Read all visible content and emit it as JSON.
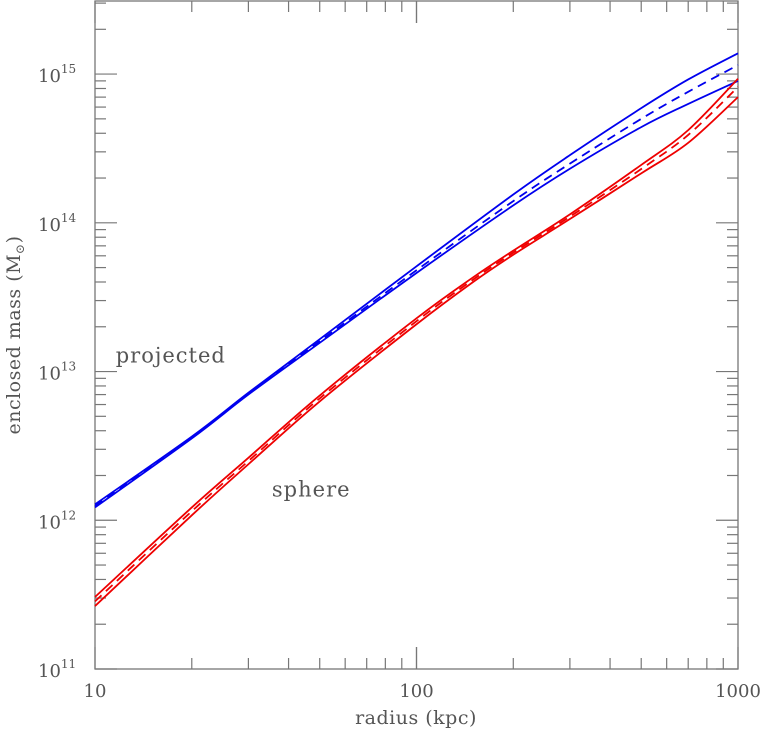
{
  "chart_data": {
    "type": "line",
    "title": "",
    "xlabel": "radius (kpc)",
    "ylabel": "enclosed mass (M",
    "ylabel_symbol": "⊙",
    "ylabel_close": ")",
    "x_scale": "log",
    "y_scale": "log",
    "xlim": [
      10,
      1000
    ],
    "ylim": [
      100000000000.0,
      3100000000000000.0
    ],
    "x_ticks": [
      {
        "value": 10,
        "label": "10"
      },
      {
        "value": 100,
        "label": "100"
      },
      {
        "value": 1000,
        "label": "1000"
      }
    ],
    "y_ticks": [
      {
        "value": 100000000000.0,
        "base": "10",
        "exp": "11"
      },
      {
        "value": 1000000000000.0,
        "base": "10",
        "exp": "12"
      },
      {
        "value": 10000000000000.0,
        "base": "10",
        "exp": "13"
      },
      {
        "value": 100000000000000.0,
        "base": "10",
        "exp": "14"
      },
      {
        "value": 1000000000000000.0,
        "base": "10",
        "exp": "15"
      }
    ],
    "grid": false,
    "annotations": [
      {
        "text": "projected",
        "x": 11.6,
        "y": 11500000000000.0
      },
      {
        "text": "sphere",
        "x": 35.5,
        "y": 1450000000000.0
      }
    ],
    "series": [
      {
        "group": "projected",
        "style": "solid",
        "color": "#0000ee",
        "x": [
          10,
          20,
          30,
          50,
          100,
          200,
          300,
          500,
          700,
          1000
        ],
        "y": [
          1220000000000.0,
          3550000000000.0,
          7000000000000.0,
          15600000000000.0,
          46000000000000.0,
          131000000000000.0,
          231000000000000.0,
          440000000000000.0,
          630000000000000.0,
          900000000000000.0
        ]
      },
      {
        "group": "projected",
        "style": "dashed",
        "color": "#0000ee",
        "x": [
          10,
          20,
          30,
          50,
          100,
          200,
          300,
          500,
          700,
          1000
        ],
        "y": [
          1250000000000.0,
          3600000000000.0,
          7100000000000.0,
          16000000000000.0,
          48000000000000.0,
          140000000000000.0,
          250000000000000.0,
          500000000000000.0,
          760000000000000.0,
          1150000000000000.0
        ]
      },
      {
        "group": "projected",
        "style": "solid",
        "color": "#0000ee",
        "x": [
          10,
          20,
          30,
          50,
          100,
          200,
          300,
          500,
          700,
          1000
        ],
        "y": [
          1280000000000.0,
          3650000000000.0,
          7200000000000.0,
          16500000000000.0,
          51000000000000.0,
          155000000000000.0,
          285000000000000.0,
          590000000000000.0,
          920000000000000.0,
          1380000000000000.0
        ]
      },
      {
        "group": "sphere",
        "style": "solid",
        "color": "#ee0000",
        "x": [
          10,
          20,
          30,
          50,
          100,
          150,
          200,
          300,
          500,
          700,
          1000
        ],
        "y": [
          265000000000.0,
          1080000000000.0,
          2380000000000.0,
          6300000000000.0,
          20800000000000.0,
          40000000000000.0,
          61000000000000.0,
          106000000000000.0,
          215000000000000.0,
          345000000000000.0,
          700000000000000.0
        ]
      },
      {
        "group": "sphere",
        "style": "dashed",
        "color": "#ee0000",
        "x": [
          10,
          20,
          30,
          50,
          100,
          150,
          200,
          300,
          500,
          700,
          1000
        ],
        "y": [
          285000000000.0,
          1150000000000.0,
          2500000000000.0,
          6600000000000.0,
          21800000000000.0,
          41500000000000.0,
          63000000000000.0,
          110000000000000.0,
          230000000000000.0,
          390000000000000.0,
          820000000000000.0
        ]
      },
      {
        "group": "sphere",
        "style": "solid",
        "color": "#ee0000",
        "x": [
          10,
          20,
          30,
          50,
          100,
          150,
          200,
          300,
          500,
          700,
          1000
        ],
        "y": [
          305000000000.0,
          1220000000000.0,
          2630000000000.0,
          6900000000000.0,
          22800000000000.0,
          43000000000000.0,
          65000000000000.0,
          114000000000000.0,
          245000000000000.0,
          420000000000000.0,
          930000000000000.0
        ]
      }
    ]
  }
}
